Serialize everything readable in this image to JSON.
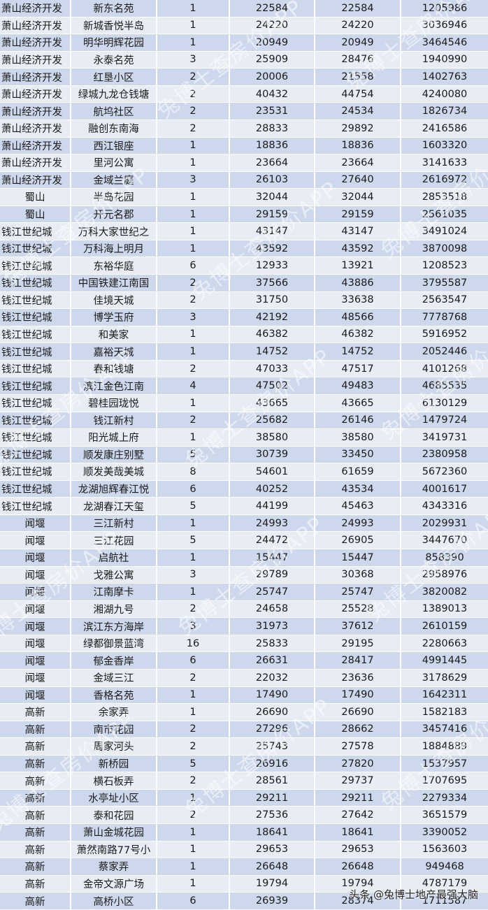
{
  "colors": {
    "row_light": "#e8ecf4",
    "row_blue": "#cdd8ec"
  },
  "watermark": "兔博士查房价APP",
  "footer": "头条 @兔博士地产最强大脑",
  "rows": [
    [
      "萧山经济开发",
      "新东名苑",
      "1",
      "22584",
      "22584",
      "1205986"
    ],
    [
      "萧山经济开发",
      "新城香悦半岛",
      "1",
      "24220",
      "24220",
      "3036946"
    ],
    [
      "萧山经济开发",
      "明华明辉花园",
      "1",
      "20949",
      "20949",
      "3464546"
    ],
    [
      "萧山经济开发",
      "永泰名苑",
      "3",
      "25909",
      "28476",
      "1940990"
    ],
    [
      "萧山经济开发",
      "红垦小区",
      "2",
      "20006",
      "21558",
      "1402763"
    ],
    [
      "萧山经济开发",
      "绿城九龙仓钱塘",
      "2",
      "40432",
      "44754",
      "4240080"
    ],
    [
      "萧山经济开发",
      "航坞社区",
      "2",
      "23531",
      "24534",
      "1826734"
    ],
    [
      "萧山经济开发",
      "融创东南海",
      "2",
      "28833",
      "29892",
      "2416586"
    ],
    [
      "萧山经济开发",
      "西江银座",
      "1",
      "18836",
      "18836",
      "1603320"
    ],
    [
      "萧山经济开发",
      "里河公寓",
      "1",
      "23664",
      "23664",
      "3141633"
    ],
    [
      "萧山经济开发",
      "金域兰庭",
      "3",
      "26103",
      "27640",
      "2616972"
    ],
    [
      "蜀山",
      "半岛花园",
      "1",
      "32044",
      "32044",
      "2853518"
    ],
    [
      "蜀山",
      "开元名郡",
      "1",
      "29159",
      "29159",
      "2561035"
    ],
    [
      "钱江世纪城",
      "万科大家世纪之",
      "1",
      "43147",
      "43147",
      "3491024"
    ],
    [
      "钱江世纪城",
      "万科海上明月",
      "1",
      "43592",
      "43592",
      "3870098"
    ],
    [
      "钱江世纪城",
      "东裕华庭",
      "6",
      "12933",
      "13921",
      "1208523"
    ],
    [
      "钱江世纪城",
      "中国铁建江南国",
      "2",
      "37566",
      "43886",
      "3795587"
    ],
    [
      "钱江世纪城",
      "佳境天城",
      "2",
      "31750",
      "33638",
      "2563547"
    ],
    [
      "钱江世纪城",
      "博学玉府",
      "3",
      "42192",
      "48566",
      "7778768"
    ],
    [
      "钱江世纪城",
      "和美家",
      "1",
      "46382",
      "46382",
      "5916952"
    ],
    [
      "钱江世纪城",
      "嘉裕天城",
      "1",
      "14752",
      "14752",
      "2052446"
    ],
    [
      "钱江世纪城",
      "春和钱塘",
      "2",
      "47033",
      "47517",
      "4101268"
    ],
    [
      "钱江世纪城",
      "滨江金色江南",
      "4",
      "47502",
      "49483",
      "4685535"
    ],
    [
      "钱江世纪城",
      "碧桂园珑悦",
      "1",
      "43665",
      "43665",
      "6130129"
    ],
    [
      "钱江世纪城",
      "钱江新村",
      "2",
      "25682",
      "26146",
      "1479724"
    ],
    [
      "钱江世纪城",
      "阳光城上府",
      "1",
      "38580",
      "38580",
      "3419731"
    ],
    [
      "钱江世纪城",
      "顺发康庄别墅",
      "5",
      "30739",
      "33450",
      "2380958"
    ],
    [
      "钱江世纪城",
      "顺发美哉美城",
      "8",
      "54601",
      "61659",
      "5672360"
    ],
    [
      "钱江世纪城",
      "龙湖旭辉春江悦",
      "6",
      "40252",
      "43534",
      "4001617"
    ],
    [
      "钱江世纪城",
      "龙湖春江天玺",
      "5",
      "44199",
      "45463",
      "4343316"
    ],
    [
      "闻堰",
      "三江新村",
      "1",
      "24993",
      "24993",
      "2029931"
    ],
    [
      "闻堰",
      "三江花园",
      "5",
      "24472",
      "26905",
      "3447670"
    ],
    [
      "闻堰",
      "启航社",
      "1",
      "15447",
      "15447",
      "858390"
    ],
    [
      "闻堰",
      "戈雅公寓",
      "3",
      "29789",
      "30368",
      "2958976"
    ],
    [
      "闻堰",
      "江南摩卡",
      "1",
      "25747",
      "25747",
      "3820082"
    ],
    [
      "闻堰",
      "湘湖九号",
      "2",
      "24658",
      "25528",
      "1389013"
    ],
    [
      "闻堰",
      "滨江东方海岸",
      "3",
      "31973",
      "37612",
      "2610159"
    ],
    [
      "闻堰",
      "绿都御景蓝湾",
      "16",
      "25833",
      "29195",
      "2280663"
    ],
    [
      "闻堰",
      "郁金香岸",
      "6",
      "26631",
      "28417",
      "4991445"
    ],
    [
      "闻堰",
      "金域三江",
      "2",
      "22032",
      "23636",
      "3178629"
    ],
    [
      "闻堰",
      "香格名苑",
      "1",
      "17490",
      "17490",
      "1642311"
    ],
    [
      "高新",
      "余家弄",
      "1",
      "26690",
      "26690",
      "1582183"
    ],
    [
      "高新",
      "南市花园",
      "2",
      "27296",
      "28662",
      "3457416"
    ],
    [
      "高新",
      "周家河头",
      "2",
      "25743",
      "27578",
      "1884889"
    ],
    [
      "高新",
      "新桥园",
      "5",
      "26916",
      "27820",
      "1537957"
    ],
    [
      "高新",
      "横石板弄",
      "2",
      "28561",
      "29737",
      "1707695"
    ],
    [
      "高新",
      "水亭址小区",
      "1",
      "29211",
      "29211",
      "2279334"
    ],
    [
      "高新",
      "泰和花园",
      "2",
      "27536",
      "27642",
      "3651579"
    ],
    [
      "高新",
      "萧山金城花园",
      "1",
      "18641",
      "18641",
      "3390052"
    ],
    [
      "高新",
      "萧然南路77号小",
      "1",
      "29653",
      "29653",
      "1563603"
    ],
    [
      "高新",
      "蔡家弄",
      "1",
      "26648",
      "26648",
      "949468"
    ],
    [
      "高新",
      "金帝文源广场",
      "1",
      "19794",
      "19794",
      "4787179"
    ],
    [
      "高新",
      "高桥小区",
      "6",
      "26939",
      "28374",
      "1711587"
    ]
  ]
}
